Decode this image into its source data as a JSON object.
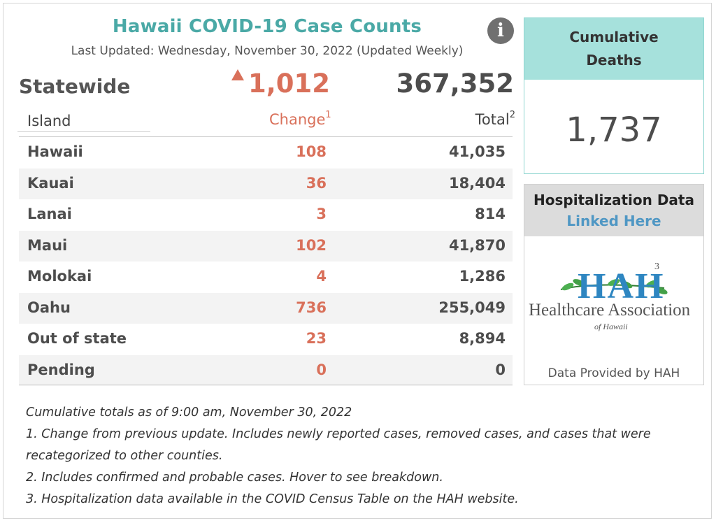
{
  "header": {
    "title": "Hawaii COVID-19 Case Counts",
    "last_updated": "Last Updated: Wednesday, November 30, 2022 (Updated Weekly)",
    "info_icon_glyph": "i"
  },
  "statewide": {
    "label": "Statewide",
    "change": "1,012",
    "total": "367,352"
  },
  "table": {
    "col_island": "Island",
    "col_change": "Change",
    "col_change_sup": "1",
    "col_total": "Total",
    "col_total_sup": "2",
    "rows": [
      {
        "island": "Hawaii",
        "change": "108",
        "total": "41,035"
      },
      {
        "island": "Kauai",
        "change": "36",
        "total": "18,404"
      },
      {
        "island": "Lanai",
        "change": "3",
        "total": "814"
      },
      {
        "island": "Maui",
        "change": "102",
        "total": "41,870"
      },
      {
        "island": "Molokai",
        "change": "4",
        "total": "1,286"
      },
      {
        "island": "Oahu",
        "change": "736",
        "total": "255,049"
      },
      {
        "island": "Out of state",
        "change": "23",
        "total": "8,894"
      },
      {
        "island": "Pending",
        "change": "0",
        "total": "0"
      }
    ]
  },
  "deaths": {
    "header_line1": "Cumulative",
    "header_line2": "Deaths",
    "value": "1,737"
  },
  "hospitalization": {
    "title": "Hospitalization Data",
    "link_label": "Linked Here",
    "logo_text": "HAH",
    "logo_sup": "3",
    "logo_name": "Healthcare Association",
    "logo_sub": "of Hawaii",
    "footer": "Data Provided by HAH"
  },
  "notes": [
    "Cumulative totals as of 9:00 am, November 30, 2022",
    "1. Change from previous update. Includes newly reported cases, removed cases, and cases that were",
    "recategorized to other counties.",
    "2. Includes confirmed and probable cases. Hover to see breakdown.",
    "3. Hospitalization data available in the COVID Census Table on the HAH website."
  ],
  "colors": {
    "title_teal": "#4aa9a6",
    "change_red": "#d9705a",
    "deaths_header": "#a6e1dc",
    "link_blue": "#4f97c4"
  }
}
